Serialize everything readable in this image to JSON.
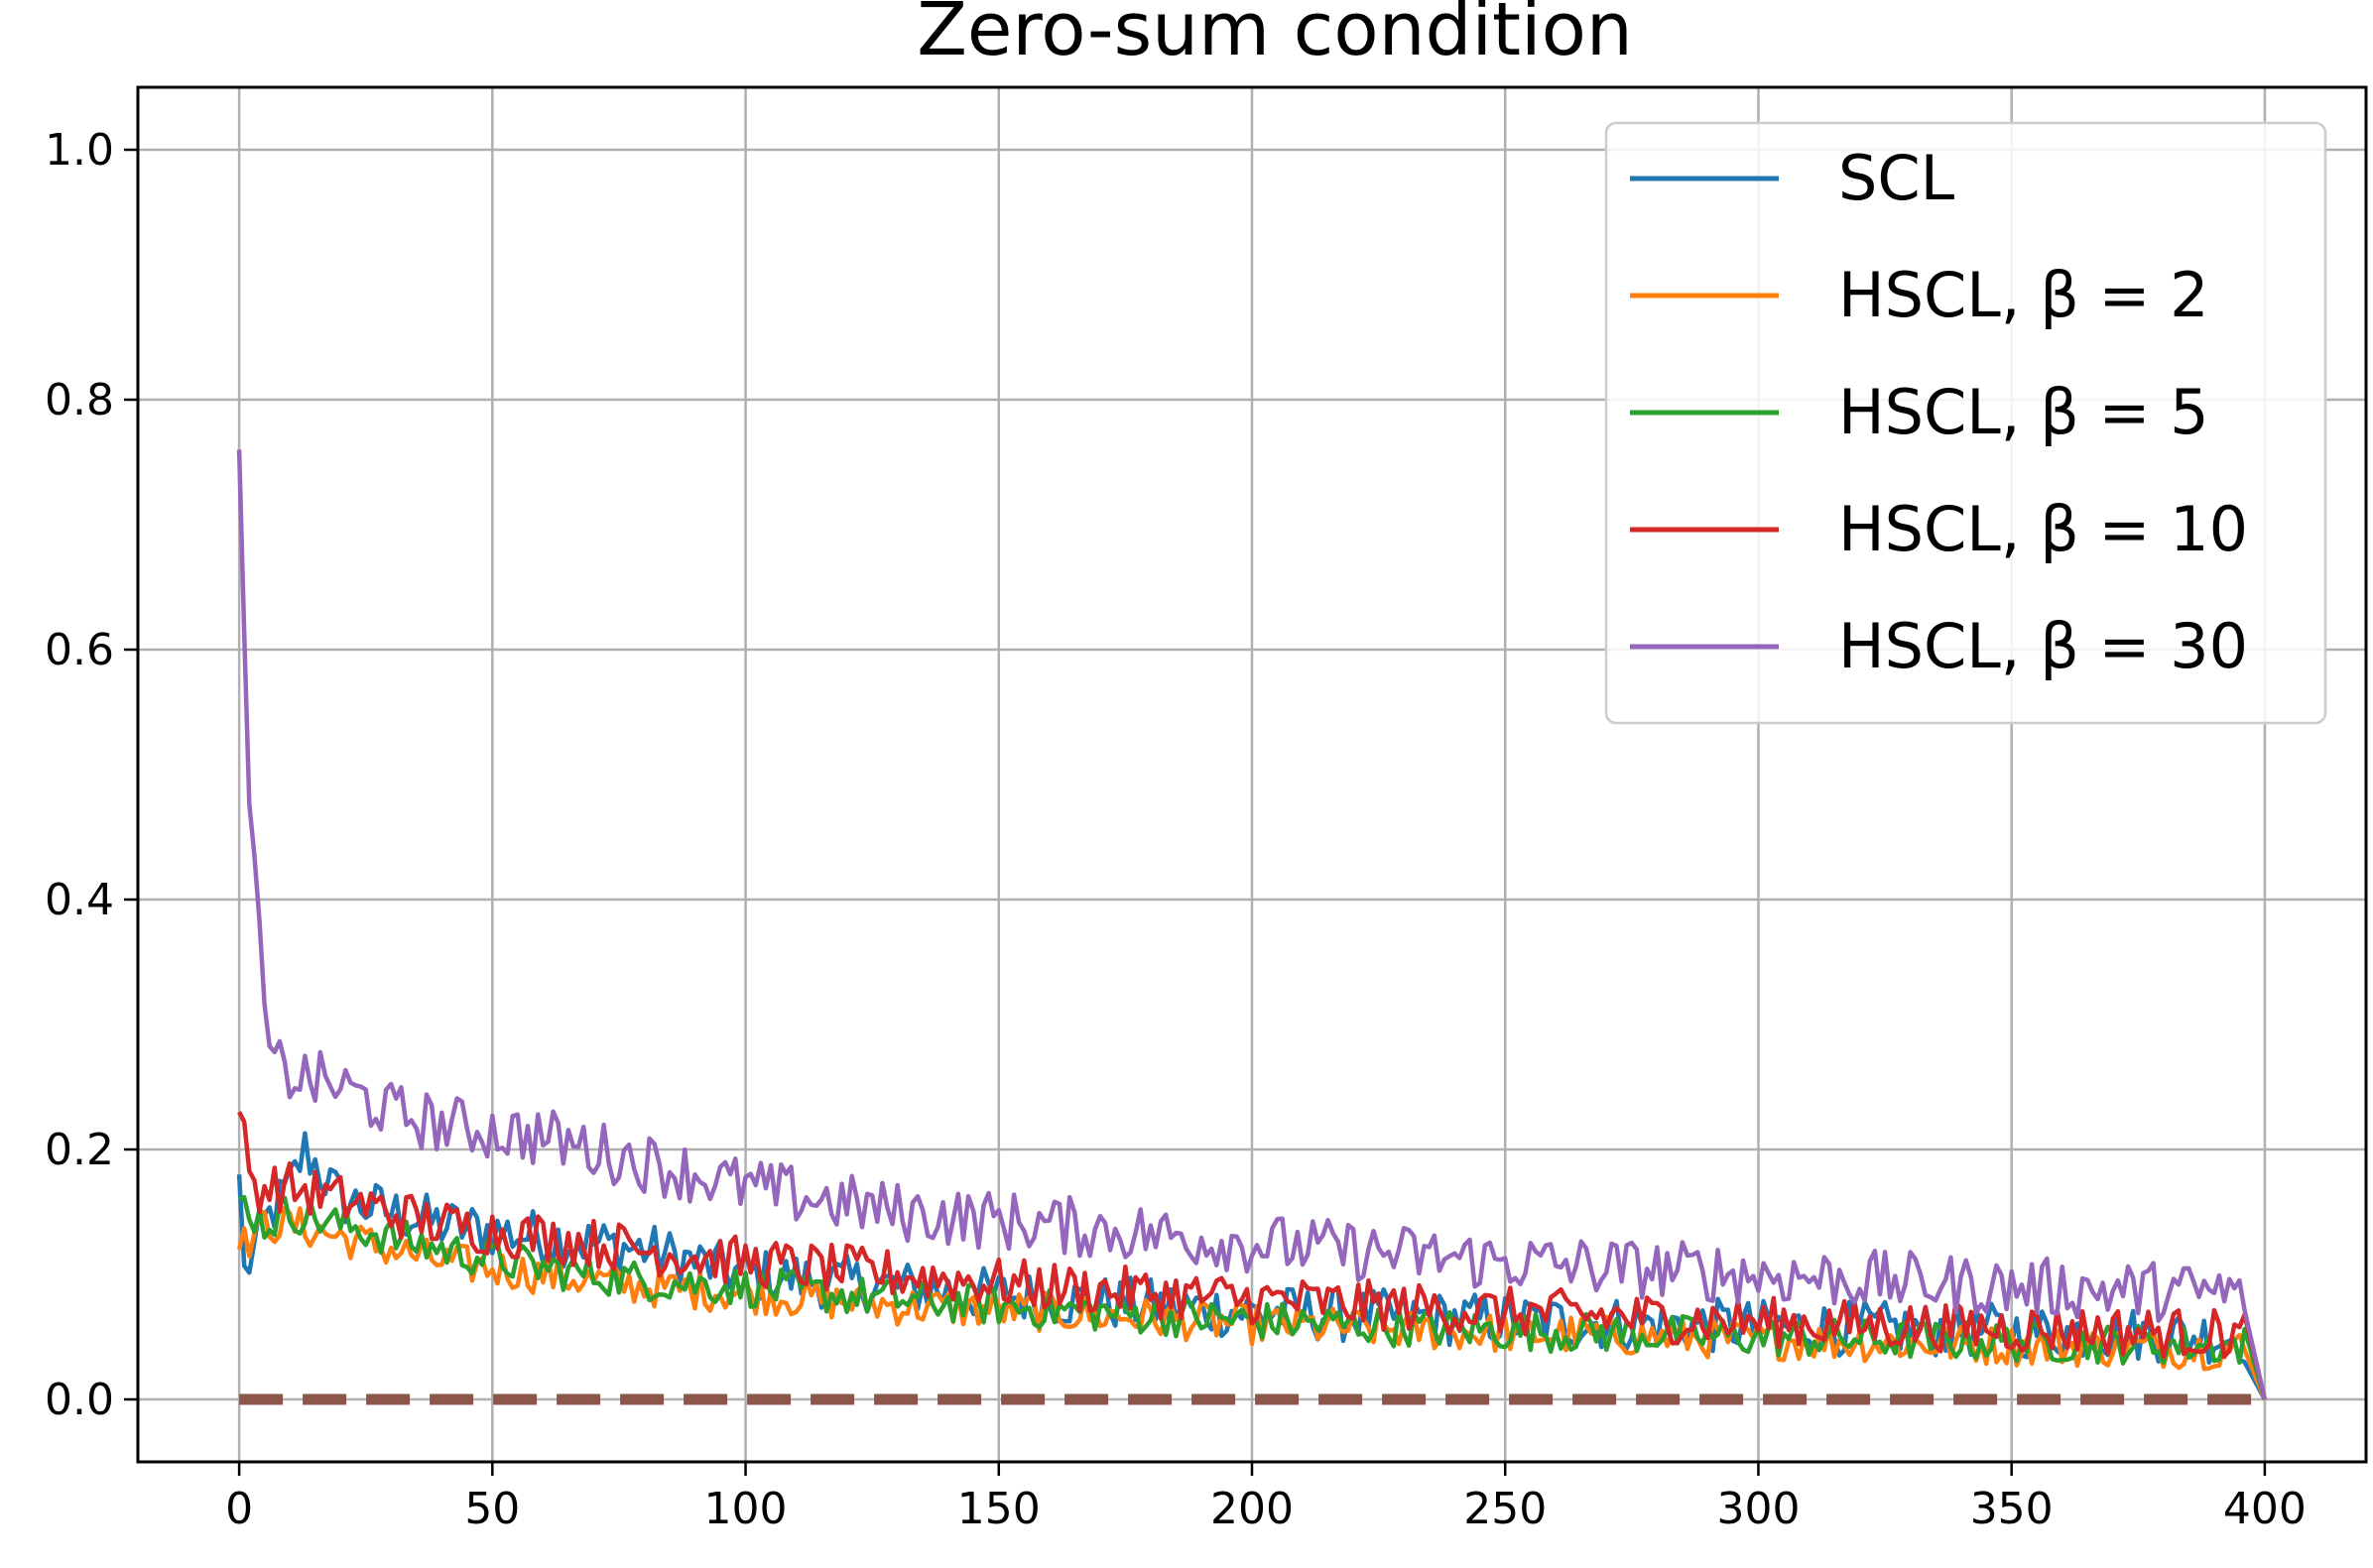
{
  "chart_data": {
    "type": "line",
    "title": "Zero-sum condition",
    "xlabel": "",
    "ylabel": "",
    "xlim": [
      -20,
      420
    ],
    "ylim": [
      -0.05,
      1.05
    ],
    "grid": true,
    "legend_position": "top-right",
    "x_ticks": [
      0,
      50,
      100,
      150,
      200,
      250,
      300,
      350,
      400
    ],
    "x_tick_labels": [
      "0",
      "50",
      "100",
      "150",
      "200",
      "250",
      "300",
      "350",
      "400"
    ],
    "y_ticks": [
      0.0,
      0.2,
      0.4,
      0.6,
      0.8,
      1.0
    ],
    "y_tick_labels": [
      "0.0",
      "0.2",
      "0.4",
      "0.6",
      "0.8",
      "1.0"
    ],
    "x_range": [
      0,
      400
    ],
    "series": [
      {
        "name": "SCL",
        "label": "SCL",
        "color": "#1f77b4",
        "anchors": [
          [
            0,
            0.18
          ],
          [
            1,
            0.1
          ],
          [
            5,
            0.14
          ],
          [
            10,
            0.17
          ],
          [
            13,
            0.2
          ],
          [
            20,
            0.16
          ],
          [
            40,
            0.14
          ],
          [
            60,
            0.13
          ],
          [
            80,
            0.12
          ],
          [
            100,
            0.1
          ],
          [
            130,
            0.09
          ],
          [
            160,
            0.08
          ],
          [
            200,
            0.07
          ],
          [
            250,
            0.063
          ],
          [
            300,
            0.058
          ],
          [
            350,
            0.055
          ],
          [
            396,
            0.05
          ]
        ],
        "noise": 0.022,
        "end_to_zero": true
      },
      {
        "name": "HSCL-beta-2",
        "label": "HSCL, β = 2",
        "color": "#ff7f0e",
        "anchors": [
          [
            0,
            0.12
          ],
          [
            5,
            0.14
          ],
          [
            10,
            0.14
          ],
          [
            20,
            0.13
          ],
          [
            40,
            0.11
          ],
          [
            60,
            0.1
          ],
          [
            80,
            0.09
          ],
          [
            100,
            0.085
          ],
          [
            130,
            0.075
          ],
          [
            160,
            0.07
          ],
          [
            200,
            0.06
          ],
          [
            250,
            0.053
          ],
          [
            300,
            0.048
          ],
          [
            350,
            0.043
          ],
          [
            396,
            0.04
          ]
        ],
        "noise": 0.016,
        "end_to_zero": true
      },
      {
        "name": "HSCL-beta-5",
        "label": "HSCL, β = 5",
        "color": "#2ca02c",
        "anchors": [
          [
            0,
            0.16
          ],
          [
            5,
            0.14
          ],
          [
            10,
            0.15
          ],
          [
            20,
            0.14
          ],
          [
            40,
            0.12
          ],
          [
            60,
            0.105
          ],
          [
            80,
            0.095
          ],
          [
            100,
            0.09
          ],
          [
            130,
            0.08
          ],
          [
            160,
            0.072
          ],
          [
            200,
            0.063
          ],
          [
            250,
            0.055
          ],
          [
            300,
            0.05
          ],
          [
            350,
            0.046
          ],
          [
            396,
            0.043
          ]
        ],
        "noise": 0.016,
        "end_to_zero": true
      },
      {
        "name": "HSCL-beta-10",
        "label": "HSCL, β = 10",
        "color": "#d62728",
        "anchors": [
          [
            0,
            0.23
          ],
          [
            3,
            0.17
          ],
          [
            10,
            0.17
          ],
          [
            20,
            0.16
          ],
          [
            40,
            0.14
          ],
          [
            60,
            0.13
          ],
          [
            80,
            0.12
          ],
          [
            100,
            0.11
          ],
          [
            130,
            0.1
          ],
          [
            160,
            0.09
          ],
          [
            200,
            0.08
          ],
          [
            250,
            0.07
          ],
          [
            300,
            0.062
          ],
          [
            350,
            0.057
          ],
          [
            396,
            0.052
          ]
        ],
        "noise": 0.02,
        "end_to_zero": true
      },
      {
        "name": "HSCL-beta-30",
        "label": "HSCL, β = 30",
        "color": "#9467bd",
        "anchors": [
          [
            0,
            0.76
          ],
          [
            1,
            0.6
          ],
          [
            2,
            0.5
          ],
          [
            3,
            0.42
          ],
          [
            4,
            0.36
          ],
          [
            5,
            0.32
          ],
          [
            6,
            0.27
          ],
          [
            10,
            0.26
          ],
          [
            20,
            0.25
          ],
          [
            30,
            0.23
          ],
          [
            40,
            0.22
          ],
          [
            60,
            0.21
          ],
          [
            80,
            0.19
          ],
          [
            100,
            0.17
          ],
          [
            130,
            0.15
          ],
          [
            160,
            0.14
          ],
          [
            200,
            0.125
          ],
          [
            250,
            0.11
          ],
          [
            300,
            0.1
          ],
          [
            350,
            0.09
          ],
          [
            396,
            0.085
          ]
        ],
        "noise": 0.024,
        "end_to_zero": true
      },
      {
        "name": "zero-reference",
        "label": "",
        "color": "#8c564b",
        "dashed": true,
        "x": [
          0,
          400
        ],
        "y": [
          0,
          0
        ]
      }
    ]
  }
}
